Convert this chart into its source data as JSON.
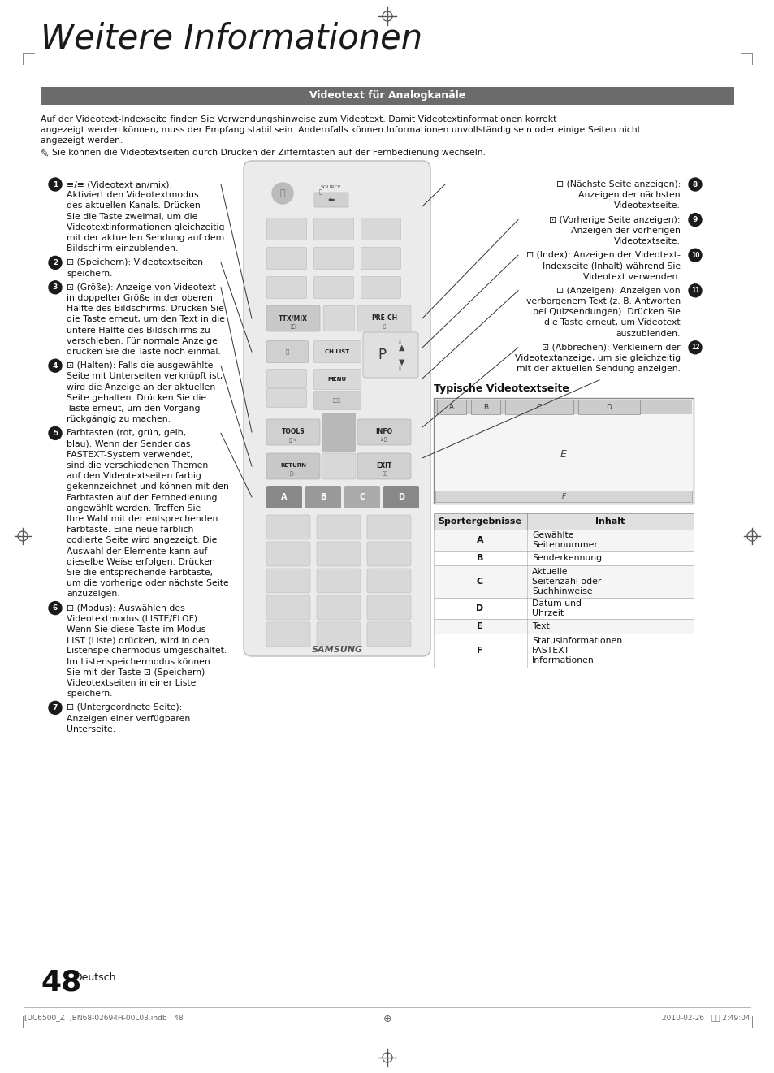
{
  "title": "Weitere Informationen",
  "section_header": "Videotext für Analogkanäle",
  "header_bg": "#6b6b6b",
  "header_text_color": "#ffffff",
  "bg_color": "#ffffff",
  "text_color": "#111111",
  "intro_line1": "Auf der Videotext-Indexseite finden Sie Verwendungshinweise zum Videotext. Damit Videotextinformationen korrekt",
  "intro_line2": "angezeigt werden können, muss der Empfang stabil sein. Andernfalls können Informationen unvollständig sein oder einige Seiten nicht",
  "intro_line3": "angezeigt werden.",
  "note_text": "Sie können die Videotextseiten durch Drücken der Zifferntasten auf der Fernbedienung wechseln.",
  "table_title": "Typische Videotextseite",
  "table_headers": [
    "Sportergebnisse",
    "Inhalt"
  ],
  "table_rows": [
    [
      "A",
      "Gewählte\nSeitennummer"
    ],
    [
      "B",
      "Senderkennung"
    ],
    [
      "C",
      "Aktuelle\nSeitenzahl oder\nSuchhinweise"
    ],
    [
      "D",
      "Datum und\nUhrzeit"
    ],
    [
      "E",
      "Text"
    ],
    [
      "F",
      "Statusinformationen\nFASTEXT-\nInformationen"
    ]
  ],
  "page_number": "48",
  "page_label": "Deutsch",
  "footer_left": "[UC6500_ZT]BN68-02694H-00L03.indb   48",
  "footer_right": "2010-02-26   오후 2:49:04"
}
